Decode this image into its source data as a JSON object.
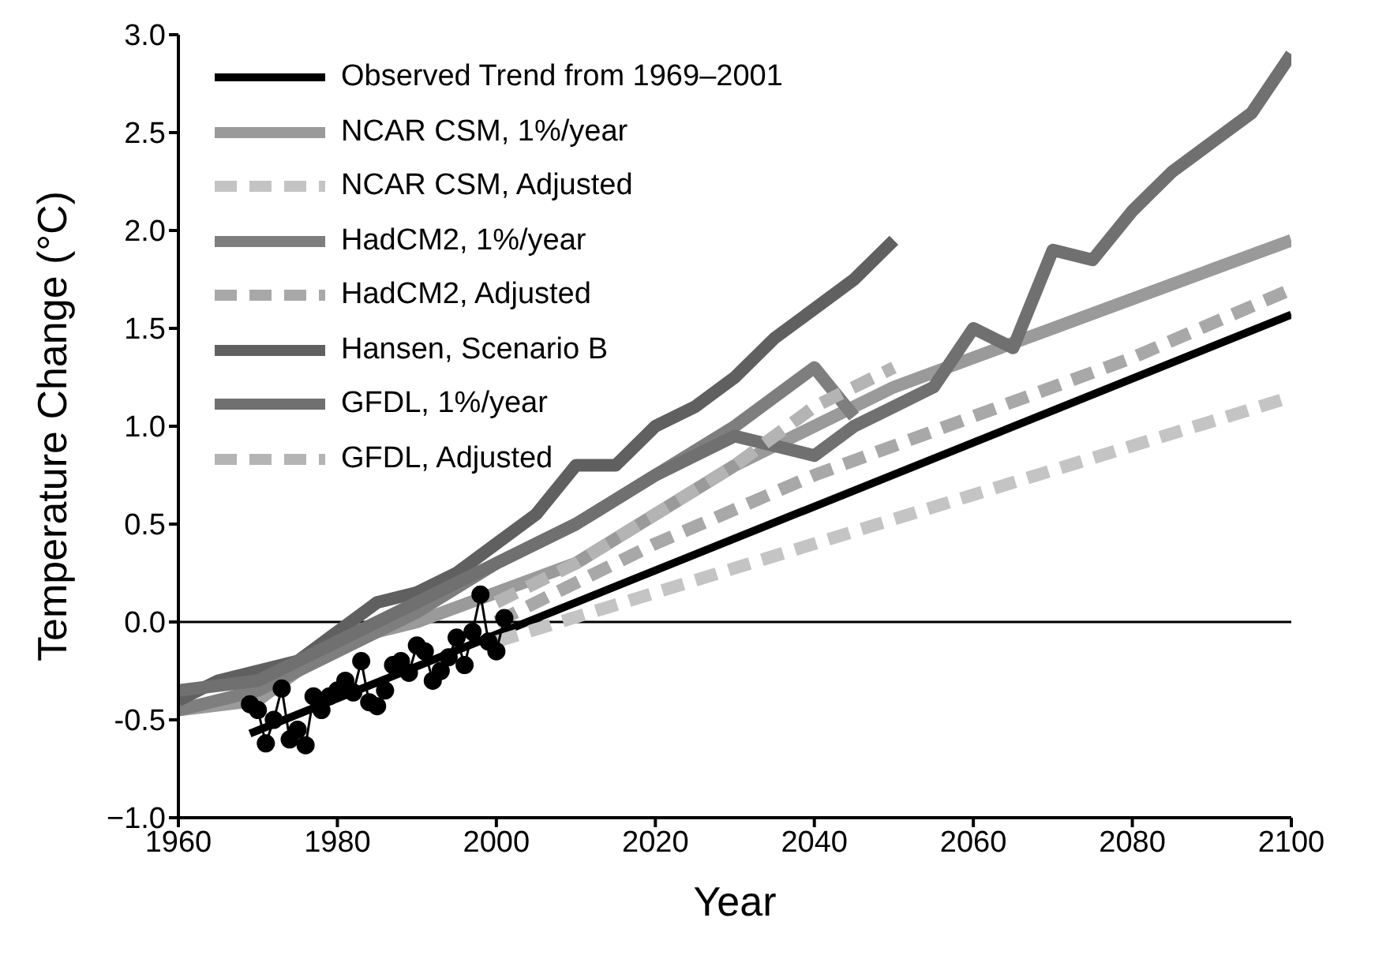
{
  "chart_data": {
    "type": "line",
    "xlabel": "Year",
    "ylabel": "Temperature Change (°C)",
    "xlim": [
      1960,
      2100
    ],
    "xticks": [
      1960,
      1980,
      2000,
      2020,
      2040,
      2060,
      2080,
      2100
    ],
    "ylim": [
      -1.0,
      3.0
    ],
    "yticks": [
      {
        "value": -1.0,
        "label": "−1.0"
      },
      {
        "value": -0.5,
        "label": "-0.5"
      },
      {
        "value": 0,
        "label": "0.0"
      },
      {
        "value": 0.5,
        "label": "0.5"
      },
      {
        "value": 1.0,
        "label": "1.0"
      },
      {
        "value": 1.5,
        "label": "1.5"
      },
      {
        "value": 2.0,
        "label": "2.0"
      },
      {
        "value": 2.5,
        "label": "2.5"
      },
      {
        "value": 3.0,
        "label": "3.0"
      }
    ],
    "grid": false,
    "legend": "top left",
    "marker": "none",
    "ref_lines": [
      {
        "axis": "y",
        "value": 0,
        "color": "#000000"
      }
    ],
    "series": [
      {
        "name": "Observed Trend from 1969–2001",
        "color": "#000000",
        "line_style": "solid",
        "x": [
          1969,
          2100
        ],
        "values": [
          -0.57,
          1.57
        ]
      },
      {
        "name": "NCAR CSM, 1%/year",
        "color": "#9a9a9a",
        "line_style": "solid",
        "x": [
          1960,
          1970,
          1980,
          1990,
          2000,
          2010,
          2020,
          2030,
          2040,
          2050,
          2060,
          2070,
          2080,
          2090,
          2100
        ],
        "values": [
          -0.45,
          -0.4,
          -0.1,
          0.0,
          0.15,
          0.3,
          0.55,
          0.8,
          1.0,
          1.2,
          1.35,
          1.5,
          1.65,
          1.8,
          1.95
        ]
      },
      {
        "name": "NCAR CSM, Adjusted",
        "color": "#c4c4c4",
        "line_style": "dashed",
        "x": [
          2000,
          2020,
          2040,
          2060,
          2080,
          2100
        ],
        "values": [
          -0.1,
          0.15,
          0.4,
          0.65,
          0.9,
          1.15
        ]
      },
      {
        "name": "HadCM2, 1%/year",
        "color": "#7e7e7e",
        "line_style": "solid",
        "x": [
          1960,
          1970,
          1980,
          1990,
          2000,
          2010,
          2020,
          2030,
          2040,
          2045
        ],
        "values": [
          -0.45,
          -0.35,
          -0.15,
          0.05,
          0.3,
          0.5,
          0.75,
          1.0,
          1.3,
          1.05
        ]
      },
      {
        "name": "HadCM2, Adjusted",
        "color": "#a8a8a8",
        "line_style": "dashed",
        "x": [
          2000,
          2020,
          2040,
          2060,
          2080,
          2100
        ],
        "values": [
          0.0,
          0.4,
          0.75,
          1.05,
          1.35,
          1.7
        ]
      },
      {
        "name": "Hansen, Scenario B",
        "color": "#606060",
        "line_style": "solid",
        "x": [
          1960,
          1965,
          1970,
          1975,
          1980,
          1985,
          1990,
          1995,
          2000,
          2005,
          2010,
          2015,
          2020,
          2025,
          2030,
          2035,
          2040,
          2045,
          2050
        ],
        "values": [
          -0.4,
          -0.3,
          -0.25,
          -0.2,
          -0.05,
          0.1,
          0.15,
          0.25,
          0.4,
          0.55,
          0.8,
          0.8,
          1.0,
          1.1,
          1.25,
          1.45,
          1.6,
          1.75,
          1.95
        ]
      },
      {
        "name": "GFDL, 1%/year",
        "color": "#707070",
        "line_style": "solid",
        "x": [
          1960,
          1970,
          1980,
          1990,
          2000,
          2010,
          2020,
          2030,
          2040,
          2045,
          2050,
          2055,
          2060,
          2065,
          2070,
          2075,
          2080,
          2085,
          2090,
          2095,
          2100
        ],
        "values": [
          -0.35,
          -0.3,
          -0.1,
          0.1,
          0.3,
          0.5,
          0.75,
          0.95,
          0.85,
          1.0,
          1.1,
          1.2,
          1.5,
          1.4,
          1.9,
          1.85,
          2.1,
          2.3,
          2.45,
          2.6,
          2.9
        ]
      },
      {
        "name": "GFDL, Adjusted",
        "color": "#b4b4b4",
        "line_style": "dashed",
        "x": [
          2000,
          2010,
          2020,
          2030,
          2040,
          2050
        ],
        "values": [
          0.1,
          0.3,
          0.55,
          0.8,
          1.1,
          1.3
        ]
      },
      {
        "color": "#000000",
        "line_style": "solid",
        "marker": "circle",
        "x": [
          1969,
          1970,
          1971,
          1972,
          1973,
          1974,
          1975,
          1976,
          1977,
          1978,
          1979,
          1980,
          1981,
          1982,
          1983,
          1984,
          1985,
          1986,
          1987,
          1988,
          1989,
          1990,
          1991,
          1992,
          1993,
          1994,
          1995,
          1996,
          1997,
          1998,
          1999,
          2000,
          2001
        ],
        "values": [
          -0.42,
          -0.45,
          -0.62,
          -0.5,
          -0.34,
          -0.6,
          -0.55,
          -0.63,
          -0.38,
          -0.45,
          -0.38,
          -0.35,
          -0.3,
          -0.36,
          -0.2,
          -0.41,
          -0.43,
          -0.35,
          -0.22,
          -0.2,
          -0.26,
          -0.12,
          -0.15,
          -0.3,
          -0.25,
          -0.18,
          -0.08,
          -0.22,
          -0.05,
          0.14,
          -0.1,
          -0.15,
          0.02
        ]
      }
    ]
  }
}
